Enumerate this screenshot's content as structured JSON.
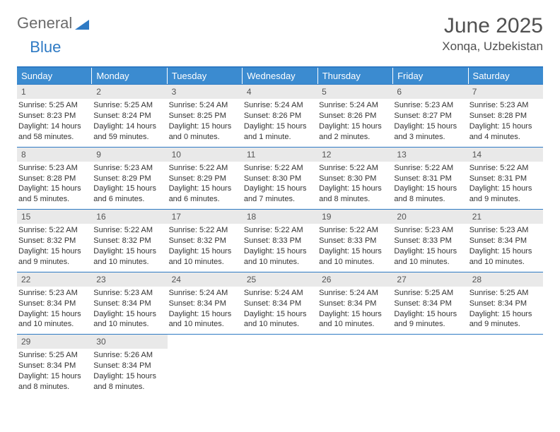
{
  "logo": {
    "text1": "General",
    "text2": "Blue"
  },
  "title": "June 2025",
  "location": "Xonqa, Uzbekistan",
  "colors": {
    "header_bg": "#3b8bd0",
    "header_border": "#2e7ac4",
    "daynum_bg": "#e9e9e9",
    "text": "#333333",
    "logo_gray": "#6b6b6b",
    "logo_blue": "#2e7ac4"
  },
  "dow": [
    "Sunday",
    "Monday",
    "Tuesday",
    "Wednesday",
    "Thursday",
    "Friday",
    "Saturday"
  ],
  "weeks": [
    [
      {
        "n": "1",
        "sr": "Sunrise: 5:25 AM",
        "ss": "Sunset: 8:23 PM",
        "d1": "Daylight: 14 hours",
        "d2": "and 58 minutes."
      },
      {
        "n": "2",
        "sr": "Sunrise: 5:25 AM",
        "ss": "Sunset: 8:24 PM",
        "d1": "Daylight: 14 hours",
        "d2": "and 59 minutes."
      },
      {
        "n": "3",
        "sr": "Sunrise: 5:24 AM",
        "ss": "Sunset: 8:25 PM",
        "d1": "Daylight: 15 hours",
        "d2": "and 0 minutes."
      },
      {
        "n": "4",
        "sr": "Sunrise: 5:24 AM",
        "ss": "Sunset: 8:26 PM",
        "d1": "Daylight: 15 hours",
        "d2": "and 1 minute."
      },
      {
        "n": "5",
        "sr": "Sunrise: 5:24 AM",
        "ss": "Sunset: 8:26 PM",
        "d1": "Daylight: 15 hours",
        "d2": "and 2 minutes."
      },
      {
        "n": "6",
        "sr": "Sunrise: 5:23 AM",
        "ss": "Sunset: 8:27 PM",
        "d1": "Daylight: 15 hours",
        "d2": "and 3 minutes."
      },
      {
        "n": "7",
        "sr": "Sunrise: 5:23 AM",
        "ss": "Sunset: 8:28 PM",
        "d1": "Daylight: 15 hours",
        "d2": "and 4 minutes."
      }
    ],
    [
      {
        "n": "8",
        "sr": "Sunrise: 5:23 AM",
        "ss": "Sunset: 8:28 PM",
        "d1": "Daylight: 15 hours",
        "d2": "and 5 minutes."
      },
      {
        "n": "9",
        "sr": "Sunrise: 5:23 AM",
        "ss": "Sunset: 8:29 PM",
        "d1": "Daylight: 15 hours",
        "d2": "and 6 minutes."
      },
      {
        "n": "10",
        "sr": "Sunrise: 5:22 AM",
        "ss": "Sunset: 8:29 PM",
        "d1": "Daylight: 15 hours",
        "d2": "and 6 minutes."
      },
      {
        "n": "11",
        "sr": "Sunrise: 5:22 AM",
        "ss": "Sunset: 8:30 PM",
        "d1": "Daylight: 15 hours",
        "d2": "and 7 minutes."
      },
      {
        "n": "12",
        "sr": "Sunrise: 5:22 AM",
        "ss": "Sunset: 8:30 PM",
        "d1": "Daylight: 15 hours",
        "d2": "and 8 minutes."
      },
      {
        "n": "13",
        "sr": "Sunrise: 5:22 AM",
        "ss": "Sunset: 8:31 PM",
        "d1": "Daylight: 15 hours",
        "d2": "and 8 minutes."
      },
      {
        "n": "14",
        "sr": "Sunrise: 5:22 AM",
        "ss": "Sunset: 8:31 PM",
        "d1": "Daylight: 15 hours",
        "d2": "and 9 minutes."
      }
    ],
    [
      {
        "n": "15",
        "sr": "Sunrise: 5:22 AM",
        "ss": "Sunset: 8:32 PM",
        "d1": "Daylight: 15 hours",
        "d2": "and 9 minutes."
      },
      {
        "n": "16",
        "sr": "Sunrise: 5:22 AM",
        "ss": "Sunset: 8:32 PM",
        "d1": "Daylight: 15 hours",
        "d2": "and 10 minutes."
      },
      {
        "n": "17",
        "sr": "Sunrise: 5:22 AM",
        "ss": "Sunset: 8:32 PM",
        "d1": "Daylight: 15 hours",
        "d2": "and 10 minutes."
      },
      {
        "n": "18",
        "sr": "Sunrise: 5:22 AM",
        "ss": "Sunset: 8:33 PM",
        "d1": "Daylight: 15 hours",
        "d2": "and 10 minutes."
      },
      {
        "n": "19",
        "sr": "Sunrise: 5:22 AM",
        "ss": "Sunset: 8:33 PM",
        "d1": "Daylight: 15 hours",
        "d2": "and 10 minutes."
      },
      {
        "n": "20",
        "sr": "Sunrise: 5:23 AM",
        "ss": "Sunset: 8:33 PM",
        "d1": "Daylight: 15 hours",
        "d2": "and 10 minutes."
      },
      {
        "n": "21",
        "sr": "Sunrise: 5:23 AM",
        "ss": "Sunset: 8:34 PM",
        "d1": "Daylight: 15 hours",
        "d2": "and 10 minutes."
      }
    ],
    [
      {
        "n": "22",
        "sr": "Sunrise: 5:23 AM",
        "ss": "Sunset: 8:34 PM",
        "d1": "Daylight: 15 hours",
        "d2": "and 10 minutes."
      },
      {
        "n": "23",
        "sr": "Sunrise: 5:23 AM",
        "ss": "Sunset: 8:34 PM",
        "d1": "Daylight: 15 hours",
        "d2": "and 10 minutes."
      },
      {
        "n": "24",
        "sr": "Sunrise: 5:24 AM",
        "ss": "Sunset: 8:34 PM",
        "d1": "Daylight: 15 hours",
        "d2": "and 10 minutes."
      },
      {
        "n": "25",
        "sr": "Sunrise: 5:24 AM",
        "ss": "Sunset: 8:34 PM",
        "d1": "Daylight: 15 hours",
        "d2": "and 10 minutes."
      },
      {
        "n": "26",
        "sr": "Sunrise: 5:24 AM",
        "ss": "Sunset: 8:34 PM",
        "d1": "Daylight: 15 hours",
        "d2": "and 10 minutes."
      },
      {
        "n": "27",
        "sr": "Sunrise: 5:25 AM",
        "ss": "Sunset: 8:34 PM",
        "d1": "Daylight: 15 hours",
        "d2": "and 9 minutes."
      },
      {
        "n": "28",
        "sr": "Sunrise: 5:25 AM",
        "ss": "Sunset: 8:34 PM",
        "d1": "Daylight: 15 hours",
        "d2": "and 9 minutes."
      }
    ],
    [
      {
        "n": "29",
        "sr": "Sunrise: 5:25 AM",
        "ss": "Sunset: 8:34 PM",
        "d1": "Daylight: 15 hours",
        "d2": "and 8 minutes."
      },
      {
        "n": "30",
        "sr": "Sunrise: 5:26 AM",
        "ss": "Sunset: 8:34 PM",
        "d1": "Daylight: 15 hours",
        "d2": "and 8 minutes."
      },
      {
        "empty": true
      },
      {
        "empty": true
      },
      {
        "empty": true
      },
      {
        "empty": true
      },
      {
        "empty": true
      }
    ]
  ]
}
